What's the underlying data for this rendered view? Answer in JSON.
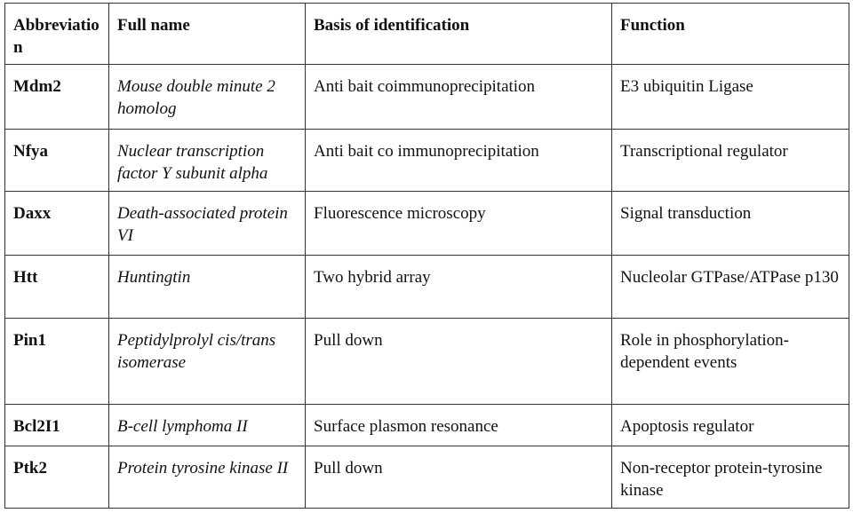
{
  "table": {
    "headers": [
      "Abbreviation",
      "Full name",
      "Basis of identification",
      "Function"
    ],
    "rows": [
      [
        "Mdm2",
        "Mouse double minute 2 homolog",
        "Anti bait coimmunoprecipitation",
        "E3 ubiquitin Ligase"
      ],
      [
        "Nfya",
        "Nuclear transcription factor Y subunit alpha",
        "Anti bait co immunoprecipitation",
        "Transcriptional regulator"
      ],
      [
        "Daxx",
        "Death-associated protein VI",
        "Fluorescence microscopy",
        "Signal transduction"
      ],
      [
        "Htt",
        "Huntingtin",
        "Two hybrid array",
        "Nucleolar GTPase/ATPase p130"
      ],
      [
        "Pin1",
        "Peptidylprolyl cis/trans isomerase",
        "Pull down",
        "Role in phosphorylation-dependent events"
      ],
      [
        "Bcl2I1",
        "B-cell lymphoma II",
        "Surface plasmon resonance",
        "Apoptosis regulator"
      ],
      [
        "Ptk2",
        "Protein tyrosine kinase II",
        "Pull down",
        "Non-receptor protein-tyrosine kinase"
      ]
    ]
  }
}
